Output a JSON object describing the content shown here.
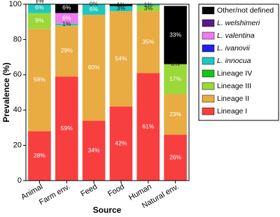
{
  "chart_data": {
    "type": "stacked_bar",
    "x_label": "Source",
    "y_label": "Prevalence (%)",
    "categories": [
      "Animal",
      "Farm env.",
      "Feed",
      "Food",
      "Human",
      "Natural env."
    ],
    "ylim": [
      0,
      100
    ],
    "yticks": [
      0,
      20,
      40,
      60,
      80,
      100
    ],
    "series": [
      {
        "name": "Lineage I",
        "color": "#f83f3f",
        "values": [
          28,
          59,
          34,
          42,
          61,
          26
        ],
        "value_labels": [
          "28%",
          "59%",
          "34%",
          "42%",
          "61%",
          "26%"
        ]
      },
      {
        "name": "Lineage II",
        "color": "#e8ac42",
        "values": [
          58,
          29,
          60,
          54,
          35,
          23
        ],
        "value_labels": [
          "58%",
          "29%",
          "60%",
          "54%",
          "35%",
          "23%"
        ]
      },
      {
        "name": "Lineage III",
        "color": "#9bd83a",
        "values": [
          9,
          0,
          0,
          0,
          3,
          17
        ],
        "value_labels": [
          "9%",
          null,
          null,
          null,
          "3%",
          "17%"
        ]
      },
      {
        "name": "Lineage IV",
        "color": "#18c418",
        "values": [
          0,
          0,
          0,
          0,
          0,
          0
        ],
        "value_labels": [
          null,
          null,
          null,
          null,
          null,
          "0%"
        ]
      },
      {
        "name": "L. innocua",
        "color": "#1ec8c0",
        "values": [
          6,
          1,
          6,
          3,
          1,
          0
        ],
        "value_labels": [
          "6%",
          "1%",
          "6%",
          "3%",
          "1%",
          null
        ]
      },
      {
        "name": "L. ivanovii",
        "color": "#2020f0",
        "values": [
          0,
          0,
          0,
          0,
          0,
          0
        ],
        "value_labels": [
          null,
          null,
          null,
          null,
          null,
          null
        ]
      },
      {
        "name": "L. valentina",
        "color": "#ee7cee",
        "values": [
          0,
          6,
          0,
          0,
          0,
          0
        ],
        "value_labels": [
          null,
          "6%",
          null,
          null,
          null,
          null
        ]
      },
      {
        "name": "L. welshimeri",
        "color": "#5b1a88",
        "values": [
          1,
          0,
          0,
          0,
          0,
          0
        ],
        "value_labels": [
          "1%",
          null,
          null,
          null,
          null,
          null
        ]
      },
      {
        "name": "Other/not defined",
        "color": "#000000",
        "values": [
          1,
          6,
          0,
          1,
          0,
          33
        ],
        "value_labels": [
          "1%",
          "6%",
          "0%",
          "1%",
          null,
          "33%"
        ]
      }
    ]
  }
}
